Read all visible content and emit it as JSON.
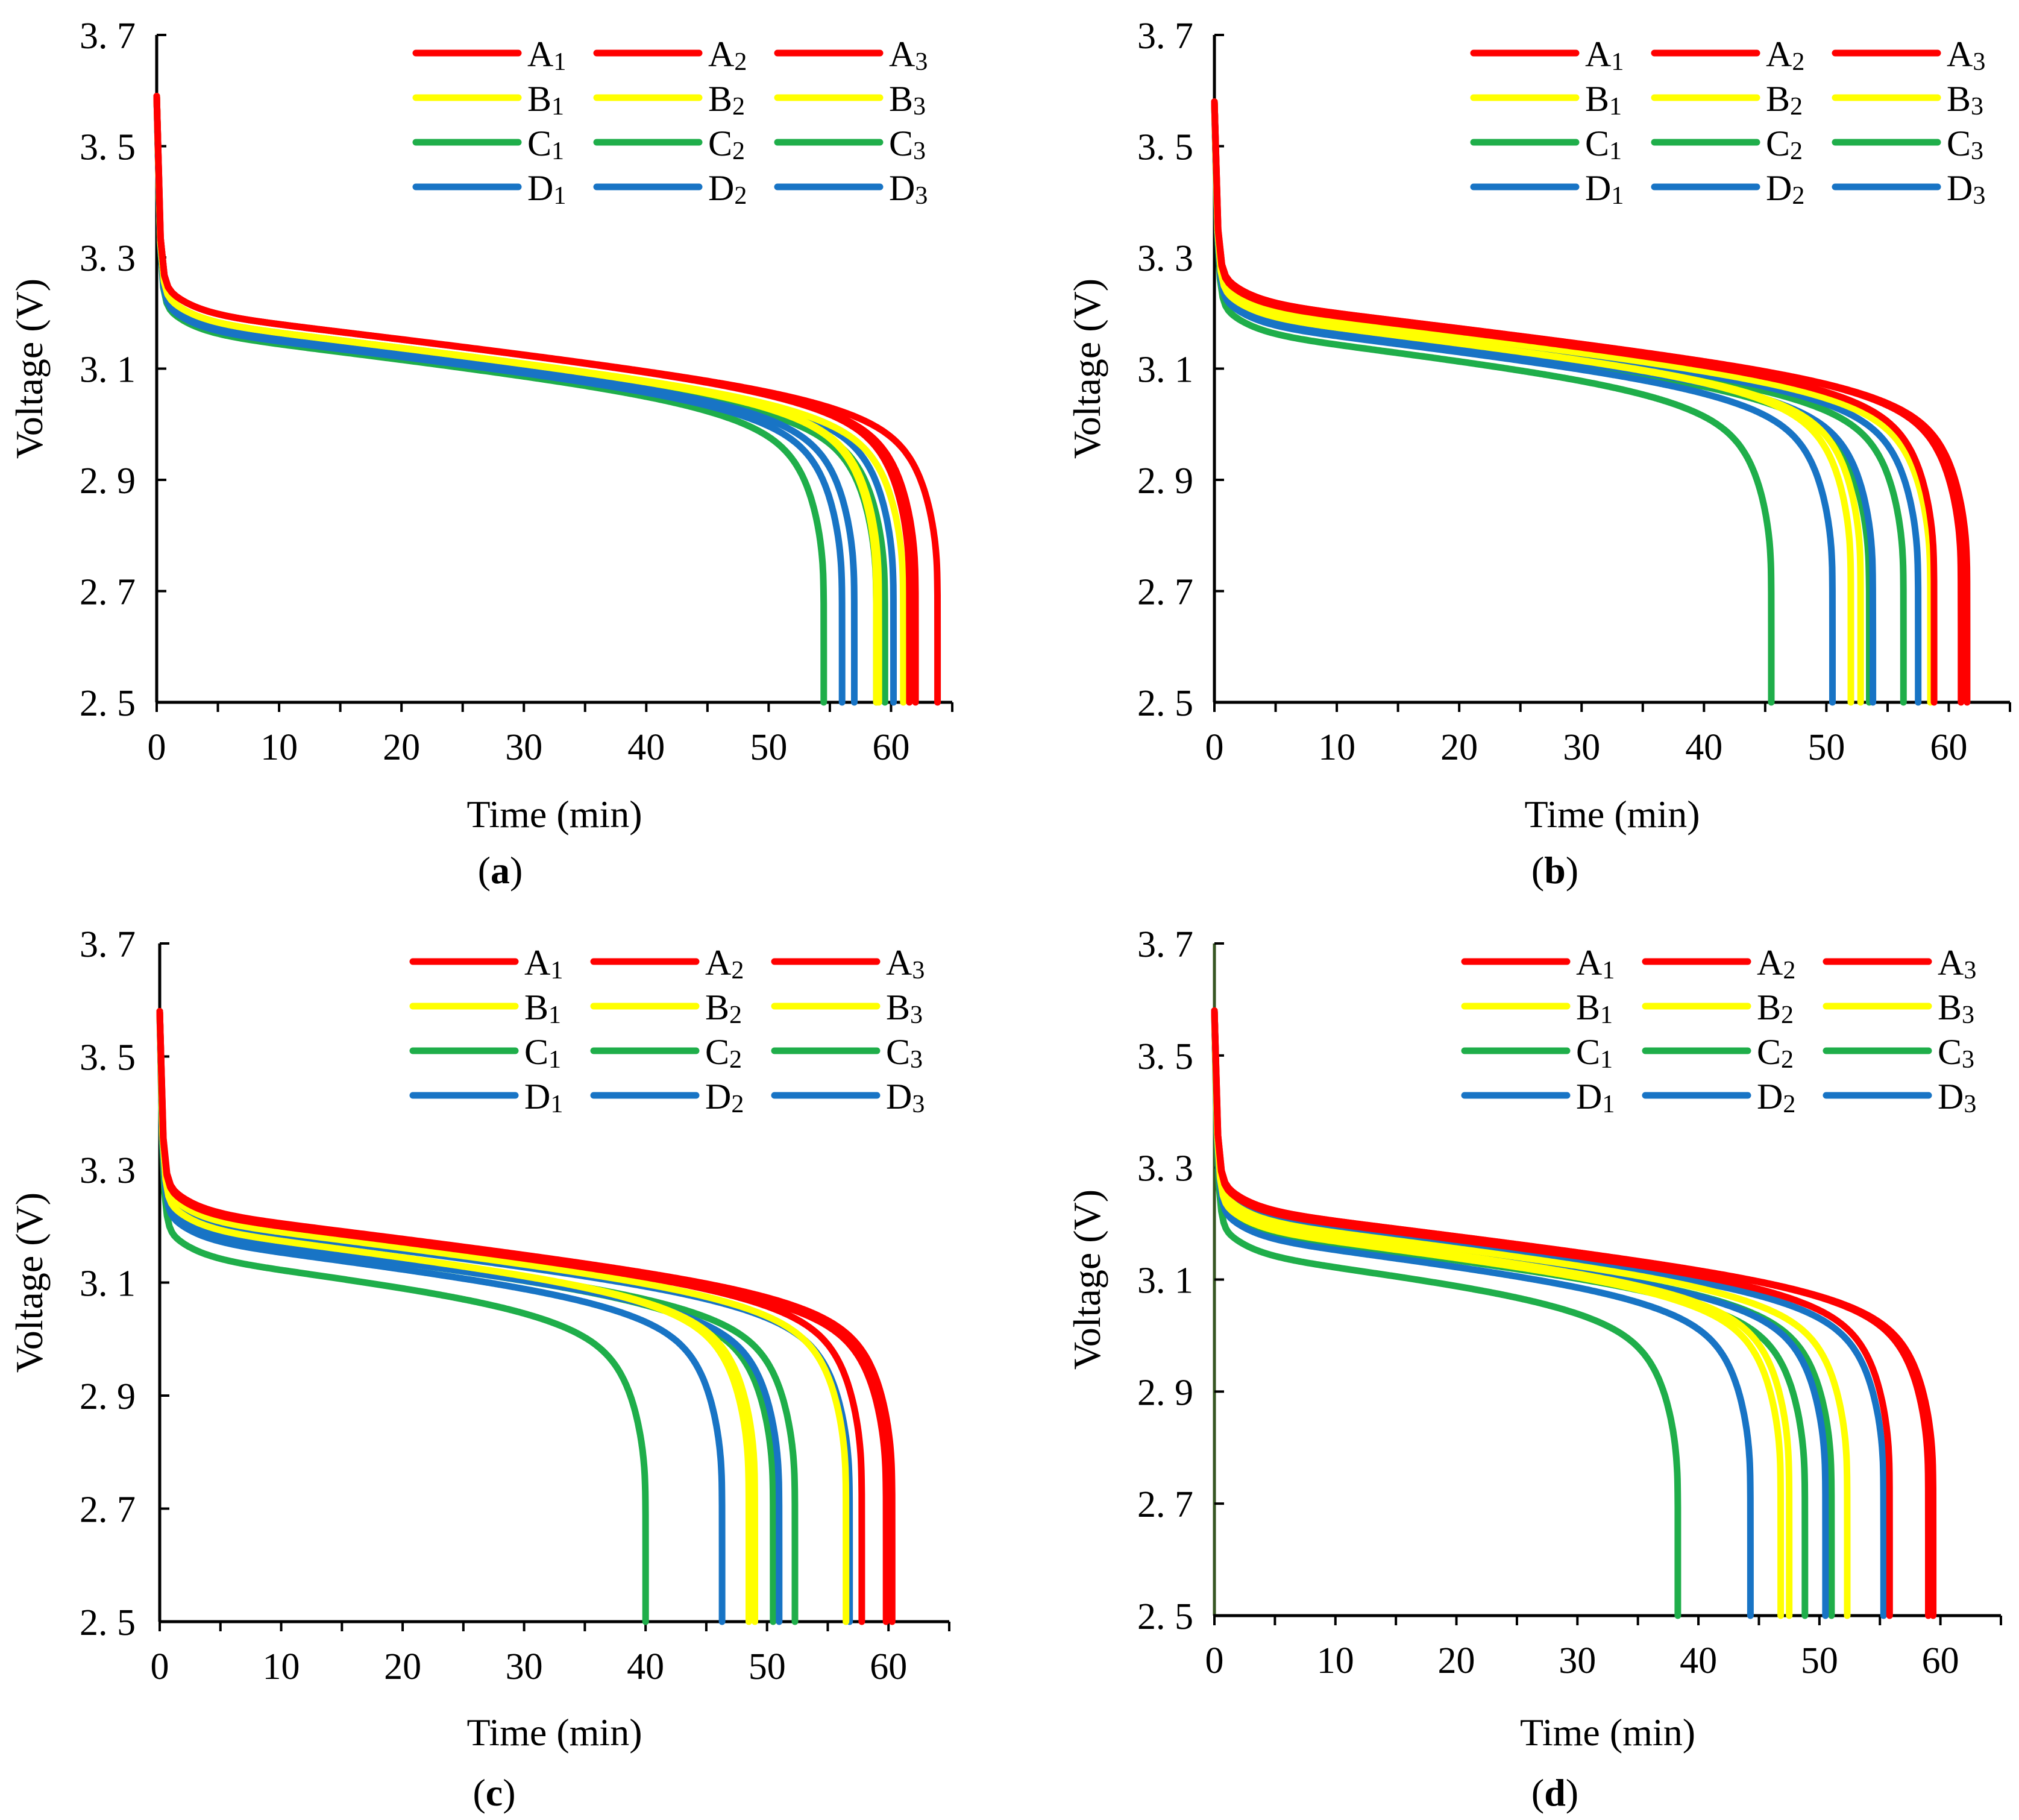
{
  "colors": {
    "A": "#ff0000",
    "B": "#ffff00",
    "C": "#1fae4a",
    "D": "#1874c5",
    "axis": "#000000",
    "axis_d_left": "#375623"
  },
  "chart_data": [
    {
      "type": "line",
      "caption": "a",
      "xlabel": "Time (min)",
      "ylabel": "Voltage (V)",
      "xlim": [
        0,
        65
      ],
      "ylim": [
        2.5,
        3.7
      ],
      "xticks": [
        "0",
        "10",
        "20",
        "30",
        "40",
        "50",
        "60"
      ],
      "yticks": [
        "2. 5",
        "2. 7",
        "2. 9",
        "3. 1",
        "3. 3",
        "3. 5",
        "3. 7"
      ],
      "legend": {
        "position": "top-right",
        "columns": 3
      },
      "series": [
        {
          "name": "A1",
          "group": "A",
          "end_time": 61.5,
          "plateau_v": 3.205,
          "knee_v": 3.0,
          "initial_v": 3.59
        },
        {
          "name": "A2",
          "group": "A",
          "end_time": 62.0,
          "plateau_v": 3.205,
          "knee_v": 3.0,
          "initial_v": 3.59
        },
        {
          "name": "A3",
          "group": "A",
          "end_time": 63.8,
          "plateau_v": 3.205,
          "knee_v": 3.0,
          "initial_v": 3.59
        },
        {
          "name": "B1",
          "group": "B",
          "end_time": 58.8,
          "plateau_v": 3.19,
          "knee_v": 3.0,
          "initial_v": 3.59
        },
        {
          "name": "B2",
          "group": "B",
          "end_time": 59.0,
          "plateau_v": 3.19,
          "knee_v": 3.0,
          "initial_v": 3.59
        },
        {
          "name": "B3",
          "group": "B",
          "end_time": 61.0,
          "plateau_v": 3.19,
          "knee_v": 3.0,
          "initial_v": 3.59
        },
        {
          "name": "C1",
          "group": "C",
          "end_time": 54.5,
          "plateau_v": 3.17,
          "knee_v": 2.98,
          "initial_v": 3.59
        },
        {
          "name": "C2",
          "group": "C",
          "end_time": 58.8,
          "plateau_v": 3.18,
          "knee_v": 3.0,
          "initial_v": 3.59
        },
        {
          "name": "C3",
          "group": "C",
          "end_time": 59.5,
          "plateau_v": 3.18,
          "knee_v": 3.0,
          "initial_v": 3.59
        },
        {
          "name": "D1",
          "group": "D",
          "end_time": 56.0,
          "plateau_v": 3.175,
          "knee_v": 2.99,
          "initial_v": 3.59
        },
        {
          "name": "D2",
          "group": "D",
          "end_time": 57.0,
          "plateau_v": 3.18,
          "knee_v": 2.99,
          "initial_v": 3.59
        },
        {
          "name": "D3",
          "group": "D",
          "end_time": 60.2,
          "plateau_v": 3.19,
          "knee_v": 3.0,
          "initial_v": 3.59
        }
      ]
    },
    {
      "type": "line",
      "caption": "b",
      "xlabel": "Time (min)",
      "ylabel": "Voltage (V)",
      "xlim": [
        0,
        65
      ],
      "ylim": [
        2.5,
        3.7
      ],
      "xticks": [
        "0",
        "10",
        "20",
        "30",
        "40",
        "50",
        "60"
      ],
      "yticks": [
        "2. 5",
        "2. 7",
        "2. 9",
        "3. 1",
        "3. 3",
        "3. 5",
        "3. 7"
      ],
      "legend": {
        "position": "top-right",
        "columns": 3
      },
      "series": [
        {
          "name": "A1",
          "group": "A",
          "end_time": 58.8,
          "plateau_v": 3.22,
          "knee_v": 3.0,
          "initial_v": 3.58
        },
        {
          "name": "A2",
          "group": "A",
          "end_time": 61.0,
          "plateau_v": 3.225,
          "knee_v": 3.0,
          "initial_v": 3.58
        },
        {
          "name": "A3",
          "group": "A",
          "end_time": 61.5,
          "plateau_v": 3.225,
          "knee_v": 3.0,
          "initial_v": 3.58
        },
        {
          "name": "B1",
          "group": "B",
          "end_time": 52.0,
          "plateau_v": 3.2,
          "knee_v": 2.98,
          "initial_v": 3.58
        },
        {
          "name": "B2",
          "group": "B",
          "end_time": 52.8,
          "plateau_v": 3.2,
          "knee_v": 2.98,
          "initial_v": 3.58
        },
        {
          "name": "B3",
          "group": "B",
          "end_time": 58.5,
          "plateau_v": 3.21,
          "knee_v": 3.0,
          "initial_v": 3.58
        },
        {
          "name": "C1",
          "group": "C",
          "end_time": 45.5,
          "plateau_v": 3.17,
          "knee_v": 2.94,
          "initial_v": 3.58
        },
        {
          "name": "C2",
          "group": "C",
          "end_time": 53.5,
          "plateau_v": 3.19,
          "knee_v": 2.98,
          "initial_v": 3.58
        },
        {
          "name": "C3",
          "group": "C",
          "end_time": 56.3,
          "plateau_v": 3.2,
          "knee_v": 2.99,
          "initial_v": 3.58
        },
        {
          "name": "D1",
          "group": "D",
          "end_time": 50.5,
          "plateau_v": 3.185,
          "knee_v": 2.97,
          "initial_v": 3.58
        },
        {
          "name": "D2",
          "group": "D",
          "end_time": 53.8,
          "plateau_v": 3.195,
          "knee_v": 2.98,
          "initial_v": 3.58
        },
        {
          "name": "D3",
          "group": "D",
          "end_time": 57.5,
          "plateau_v": 3.205,
          "knee_v": 2.99,
          "initial_v": 3.58
        }
      ]
    },
    {
      "type": "line",
      "caption": "c",
      "xlabel": "Time (min)",
      "ylabel": "Voltage (V)",
      "xlim": [
        0,
        65
      ],
      "ylim": [
        2.5,
        3.7
      ],
      "xticks": [
        "0",
        "10",
        "20",
        "30",
        "40",
        "50",
        "60"
      ],
      "yticks": [
        "2. 5",
        "2. 7",
        "2. 9",
        "3. 1",
        "3. 3",
        "3. 5",
        "3. 7"
      ],
      "legend": {
        "position": "top-right",
        "columns": 3
      },
      "series": [
        {
          "name": "A1",
          "group": "A",
          "end_time": 57.8,
          "plateau_v": 3.225,
          "knee_v": 3.0,
          "initial_v": 3.58
        },
        {
          "name": "A2",
          "group": "A",
          "end_time": 59.8,
          "plateau_v": 3.225,
          "knee_v": 3.0,
          "initial_v": 3.58
        },
        {
          "name": "A3",
          "group": "A",
          "end_time": 60.3,
          "plateau_v": 3.23,
          "knee_v": 3.0,
          "initial_v": 3.58
        },
        {
          "name": "B1",
          "group": "B",
          "end_time": 48.5,
          "plateau_v": 3.2,
          "knee_v": 2.97,
          "initial_v": 3.58
        },
        {
          "name": "B2",
          "group": "B",
          "end_time": 49.0,
          "plateau_v": 3.2,
          "knee_v": 2.97,
          "initial_v": 3.58
        },
        {
          "name": "B3",
          "group": "B",
          "end_time": 56.5,
          "plateau_v": 3.215,
          "knee_v": 3.0,
          "initial_v": 3.58
        },
        {
          "name": "C1",
          "group": "C",
          "end_time": 40.0,
          "plateau_v": 3.15,
          "knee_v": 2.94,
          "initial_v": 3.58
        },
        {
          "name": "C2",
          "group": "C",
          "end_time": 50.5,
          "plateau_v": 3.19,
          "knee_v": 2.97,
          "initial_v": 3.58
        },
        {
          "name": "C3",
          "group": "C",
          "end_time": 52.3,
          "plateau_v": 3.195,
          "knee_v": 2.98,
          "initial_v": 3.58
        },
        {
          "name": "D1",
          "group": "D",
          "end_time": 46.3,
          "plateau_v": 3.18,
          "knee_v": 2.96,
          "initial_v": 3.58
        },
        {
          "name": "D2",
          "group": "D",
          "end_time": 51.0,
          "plateau_v": 3.19,
          "knee_v": 2.97,
          "initial_v": 3.58
        },
        {
          "name": "D3",
          "group": "D",
          "end_time": 56.8,
          "plateau_v": 3.21,
          "knee_v": 2.99,
          "initial_v": 3.58
        }
      ]
    },
    {
      "type": "line",
      "caption": "d",
      "xlabel": "Time (min)",
      "ylabel": "Voltage (V)",
      "xlim": [
        0,
        65
      ],
      "ylim": [
        2.5,
        3.7
      ],
      "xticks": [
        "0",
        "10",
        "20",
        "30",
        "40",
        "50",
        "60"
      ],
      "yticks": [
        "2. 5",
        "2. 7",
        "2. 9",
        "3. 1",
        "3. 3",
        "3. 5",
        "3. 7"
      ],
      "legend": {
        "position": "top-right",
        "columns": 3
      },
      "series": [
        {
          "name": "A1",
          "group": "A",
          "end_time": 55.8,
          "plateau_v": 3.225,
          "knee_v": 3.0,
          "initial_v": 3.58
        },
        {
          "name": "A2",
          "group": "A",
          "end_time": 59.0,
          "plateau_v": 3.23,
          "knee_v": 3.0,
          "initial_v": 3.58
        },
        {
          "name": "A3",
          "group": "A",
          "end_time": 59.4,
          "plateau_v": 3.23,
          "knee_v": 3.0,
          "initial_v": 3.58
        },
        {
          "name": "B1",
          "group": "B",
          "end_time": 46.8,
          "plateau_v": 3.195,
          "knee_v": 2.96,
          "initial_v": 3.58
        },
        {
          "name": "B2",
          "group": "B",
          "end_time": 47.5,
          "plateau_v": 3.2,
          "knee_v": 2.97,
          "initial_v": 3.58
        },
        {
          "name": "B3",
          "group": "B",
          "end_time": 52.3,
          "plateau_v": 3.21,
          "knee_v": 2.98,
          "initial_v": 3.58
        },
        {
          "name": "C1",
          "group": "C",
          "end_time": 38.3,
          "plateau_v": 3.15,
          "knee_v": 2.93,
          "initial_v": 3.58
        },
        {
          "name": "C2",
          "group": "C",
          "end_time": 48.8,
          "plateau_v": 3.19,
          "knee_v": 2.97,
          "initial_v": 3.58
        },
        {
          "name": "C3",
          "group": "C",
          "end_time": 51.0,
          "plateau_v": 3.2,
          "knee_v": 2.98,
          "initial_v": 3.58
        },
        {
          "name": "D1",
          "group": "D",
          "end_time": 44.3,
          "plateau_v": 3.18,
          "knee_v": 2.95,
          "initial_v": 3.58
        },
        {
          "name": "D2",
          "group": "D",
          "end_time": 50.5,
          "plateau_v": 3.2,
          "knee_v": 2.97,
          "initial_v": 3.58
        },
        {
          "name": "D3",
          "group": "D",
          "end_time": 55.3,
          "plateau_v": 3.215,
          "knee_v": 2.99,
          "initial_v": 3.58
        }
      ]
    }
  ]
}
